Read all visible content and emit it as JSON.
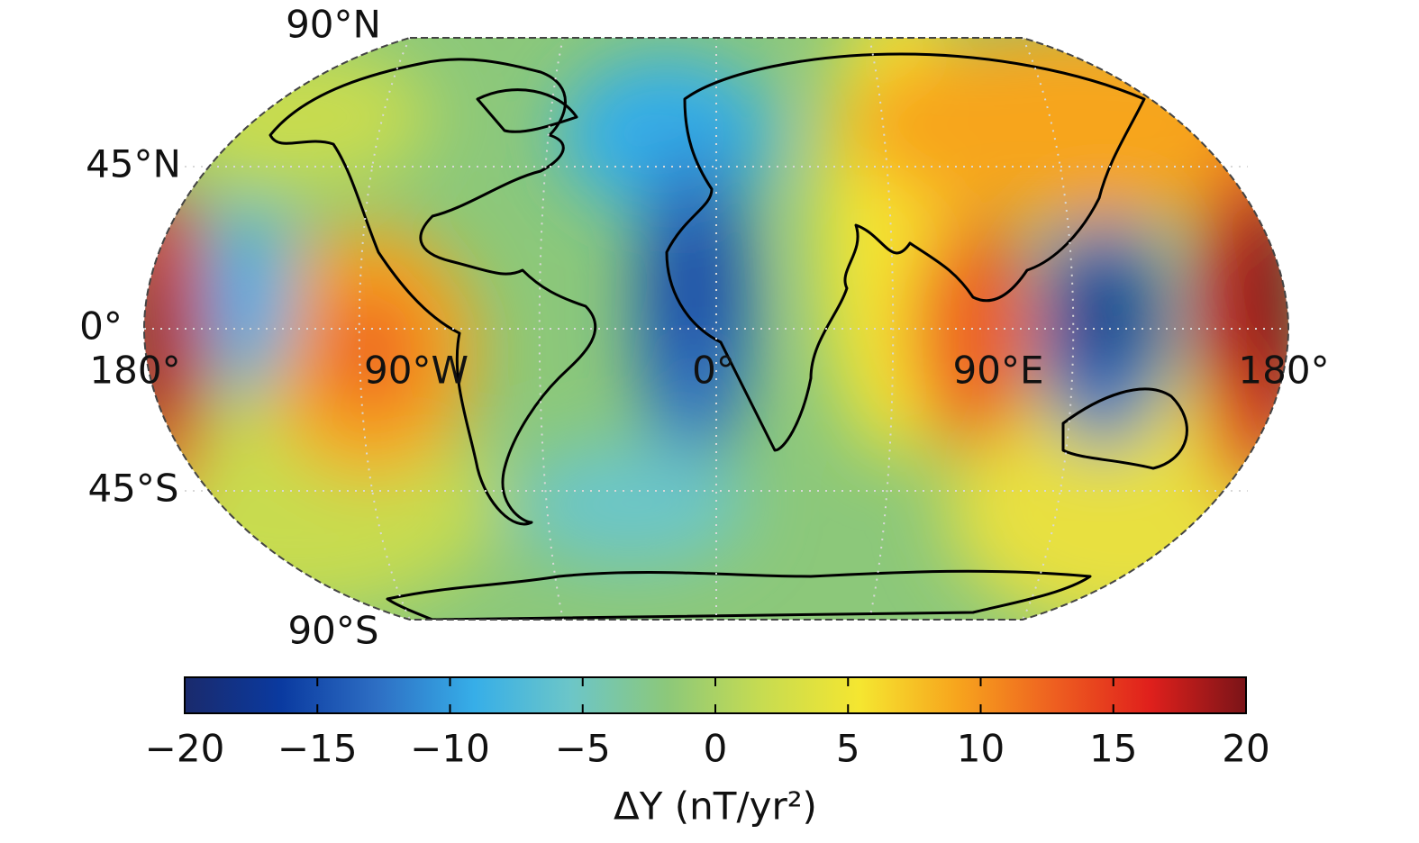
{
  "map": {
    "latitude_labels": [
      "90°N",
      "45°N",
      "0°",
      "45°S",
      "90°S"
    ],
    "longitude_labels": [
      "180°",
      "90°W",
      "0°",
      "90°E",
      "180°"
    ],
    "colorbar": {
      "clim": [
        -20,
        20
      ],
      "ticks": [
        {
          "value": -20,
          "label": "−20"
        },
        {
          "value": -15,
          "label": "−15"
        },
        {
          "value": -10,
          "label": "−10"
        },
        {
          "value": -5,
          "label": "−5"
        },
        0,
        5,
        10,
        15,
        20
      ],
      "colormap": [
        "#1a2a6c",
        "#0a3aa0",
        "#2e6fc4",
        "#36aee8",
        "#6cc6c8",
        "#8cc87a",
        "#c8dc50",
        "#f5e630",
        "#f7a51d",
        "#ee6020",
        "#e0201c",
        "#7a1418"
      ],
      "label": "ΔY (nT/yr²)"
    }
  }
}
